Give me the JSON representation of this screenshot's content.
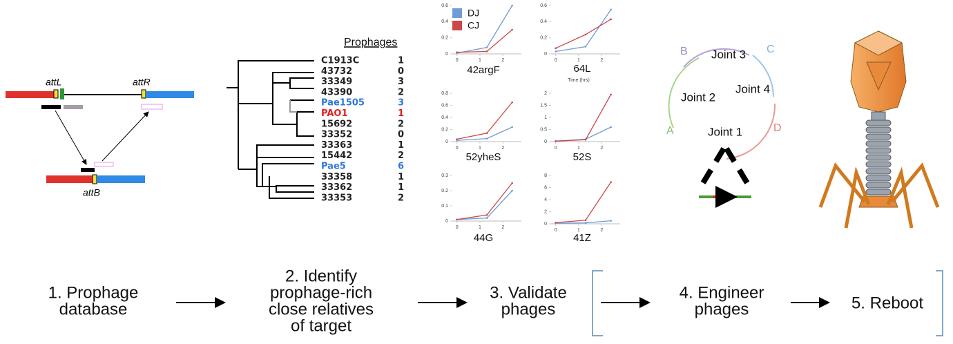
{
  "integration": {
    "labels": [
      "attL",
      "attR",
      "attB"
    ]
  },
  "tree": {
    "header": "Prophages",
    "leaves": [
      {
        "name": "C1913C",
        "count": 1,
        "color": "#222222"
      },
      {
        "name": "43732",
        "count": 0,
        "color": "#222222"
      },
      {
        "name": "33349",
        "count": 3,
        "color": "#222222"
      },
      {
        "name": "43390",
        "count": 2,
        "color": "#222222"
      },
      {
        "name": "Pae1505",
        "count": 3,
        "color": "#2f78d8"
      },
      {
        "name": "PAO1",
        "count": 1,
        "color": "#e02020"
      },
      {
        "name": "15692",
        "count": 2,
        "color": "#222222"
      },
      {
        "name": "33352",
        "count": 0,
        "color": "#222222"
      },
      {
        "name": "33363",
        "count": 1,
        "color": "#222222"
      },
      {
        "name": "15442",
        "count": 2,
        "color": "#222222"
      },
      {
        "name": "Pae5",
        "count": 6,
        "color": "#2f78d8"
      },
      {
        "name": "33358",
        "count": 1,
        "color": "#222222"
      },
      {
        "name": "33362",
        "count": 1,
        "color": "#222222"
      },
      {
        "name": "33353",
        "count": 2,
        "color": "#222222"
      }
    ]
  },
  "charts": {
    "legend": [
      {
        "name": "DJ",
        "color": "#6f9bd8"
      },
      {
        "name": "CJ",
        "color": "#cc4848"
      }
    ],
    "x_label": "Time (hrs)",
    "panels": [
      {
        "title": "42argF",
        "x": [
          0,
          1.3,
          2.4
        ],
        "xlim": [
          -0.2,
          2.8
        ],
        "xticks": [
          0,
          1,
          2
        ],
        "ylim": [
          0,
          0.6
        ],
        "yticks": [
          0,
          0.2,
          0.4,
          0.6
        ],
        "series": [
          [
            0.01,
            0.08,
            0.6
          ],
          [
            0.02,
            0.03,
            0.3
          ]
        ]
      },
      {
        "title": "64L",
        "x": [
          0,
          1.3,
          2.4
        ],
        "xlim": [
          -0.2,
          2.8
        ],
        "xticks": [
          0,
          1,
          2
        ],
        "ylim": [
          0,
          0.6
        ],
        "yticks": [
          0,
          0.2,
          0.4,
          0.6
        ],
        "series": [
          [
            0.03,
            0.09,
            0.55
          ],
          [
            0.07,
            0.24,
            0.43
          ]
        ]
      },
      {
        "title": "52yheS",
        "x": [
          0,
          1.3,
          2.4
        ],
        "xlim": [
          -0.2,
          2.8
        ],
        "xticks": [
          0,
          1,
          2
        ],
        "ylim": [
          0,
          0.8
        ],
        "yticks": [
          0,
          0.2,
          0.4,
          0.6,
          0.8
        ],
        "series": [
          [
            0.02,
            0.05,
            0.24
          ],
          [
            0.04,
            0.14,
            0.65
          ]
        ]
      },
      {
        "title": "52S",
        "x": [
          0,
          1.3,
          2.4
        ],
        "xlim": [
          -0.2,
          2.8
        ],
        "xticks": [
          0,
          1,
          2
        ],
        "ylim": [
          0,
          2
        ],
        "yticks": [
          0,
          0.5,
          1,
          1.5,
          2
        ],
        "series": [
          [
            0.02,
            0.1,
            0.6
          ],
          [
            0.02,
            0.08,
            1.95
          ]
        ]
      },
      {
        "title": "44G",
        "x": [
          0,
          1.3,
          2.4
        ],
        "xlim": [
          -0.2,
          2.8
        ],
        "xticks": [
          0,
          1,
          2
        ],
        "ylim": [
          0,
          0.3
        ],
        "yticks": [
          0,
          0.1,
          0.2,
          0.3
        ],
        "series": [
          [
            0.01,
            0.02,
            0.2
          ],
          [
            0.01,
            0.04,
            0.25
          ]
        ]
      },
      {
        "title": "41Z",
        "x": [
          0,
          1.3,
          2.4
        ],
        "xlim": [
          -0.2,
          2.8
        ],
        "xticks": [
          0,
          1,
          2
        ],
        "ylim": [
          0,
          8
        ],
        "yticks": [
          0,
          2,
          4,
          6,
          8
        ],
        "series": [
          [
            0.1,
            0.15,
            0.5
          ],
          [
            0.2,
            0.6,
            6.9
          ]
        ]
      }
    ]
  },
  "circle": {
    "segments": [
      "A",
      "B",
      "C",
      "D"
    ],
    "joints": [
      "Joint 1",
      "Joint 2",
      "Joint 3",
      "Joint 4"
    ]
  },
  "steps": [
    {
      "lines": [
        "1. Prophage",
        "database"
      ]
    },
    {
      "lines": [
        "2. Identify",
        "prophage-rich",
        "close relatives",
        "of target"
      ]
    },
    {
      "lines": [
        "3. Validate",
        "phages"
      ]
    },
    {
      "lines": [
        "4. Engineer",
        "phages"
      ]
    },
    {
      "lines": [
        "5. Reboot"
      ]
    }
  ]
}
